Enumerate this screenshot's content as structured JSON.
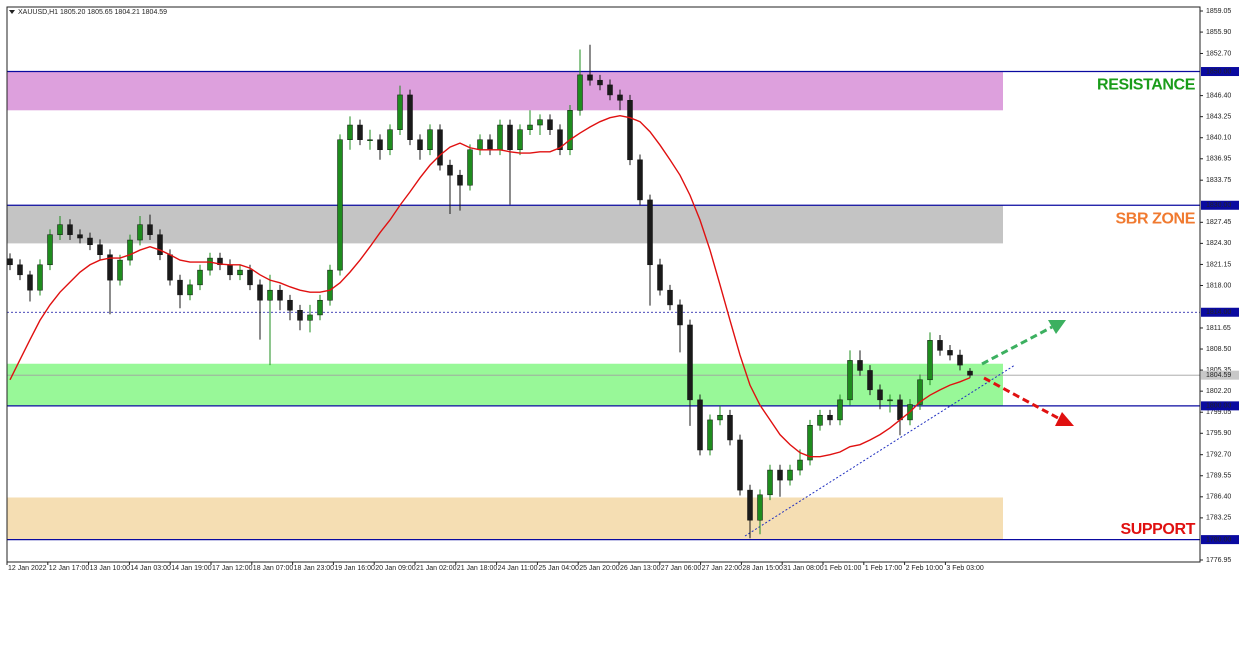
{
  "header": {
    "symbol": "XAUUSD,H1",
    "quote": "1805.20 1805.65 1804.21 1804.59"
  },
  "chart_data": {
    "type": "candlestick",
    "up_color": "#1e8c1e",
    "down_color": "#1a1a1a",
    "ylim": [
      1776.95,
      1859.65
    ],
    "yticks": [
      {
        "value": 1859.05,
        "label": "1859.05"
      },
      {
        "value": 1855.9,
        "label": "1855.90"
      },
      {
        "value": 1852.7,
        "label": "1852.70"
      },
      {
        "value": 1846.4,
        "label": "1846.40"
      },
      {
        "value": 1843.25,
        "label": "1843.25"
      },
      {
        "value": 1840.1,
        "label": "1840.10"
      },
      {
        "value": 1836.95,
        "label": "1836.95"
      },
      {
        "value": 1833.75,
        "label": "1833.75"
      },
      {
        "value": 1827.45,
        "label": "1827.45"
      },
      {
        "value": 1824.3,
        "label": "1824.30"
      },
      {
        "value": 1821.15,
        "label": "1821.15"
      },
      {
        "value": 1818.0,
        "label": "1818.00"
      },
      {
        "value": 1811.65,
        "label": "1811.65"
      },
      {
        "value": 1808.5,
        "label": "1808.50"
      },
      {
        "value": 1805.35,
        "label": "1805.35"
      },
      {
        "value": 1802.2,
        "label": "1802.20"
      },
      {
        "value": 1799.05,
        "label": "1799.05"
      },
      {
        "value": 1795.9,
        "label": "1795.90"
      },
      {
        "value": 1792.7,
        "label": "1792.70"
      },
      {
        "value": 1789.55,
        "label": "1789.55"
      },
      {
        "value": 1786.4,
        "label": "1786.40"
      },
      {
        "value": 1783.25,
        "label": "1783.25"
      },
      {
        "value": 1776.95,
        "label": "1776.95"
      }
    ],
    "xlabels": [
      "12 Jan 2022",
      "12 Jan 17:00",
      "13 Jan 10:00",
      "14 Jan 03:00",
      "14 Jan 19:00",
      "17 Jan 12:00",
      "18 Jan 07:00",
      "18 Jan 23:00",
      "19 Jan 16:00",
      "20 Jan 09:00",
      "21 Jan 02:00",
      "21 Jan 18:00",
      "24 Jan 11:00",
      "25 Jan 04:00",
      "25 Jan 20:00",
      "26 Jan 13:00",
      "27 Jan 06:00",
      "27 Jan 22:00",
      "28 Jan 15:00",
      "31 Jan 08:00",
      "1 Feb 01:00",
      "1 Feb 17:00",
      "2 Feb 10:00",
      "3 Feb 03:00"
    ],
    "zones": [
      {
        "name": "RESISTANCE",
        "from": 1844.2,
        "to": 1850,
        "color": "#dda0dd",
        "text_color": "#1a9c1a"
      },
      {
        "name": "SBR ZONE",
        "from": 1824.3,
        "to": 1830,
        "color": "#c4c4c4",
        "text_color": "#f07a30"
      },
      {
        "from": 1800,
        "to": 1806.3,
        "color": "#98f898"
      },
      {
        "name": "SUPPORT",
        "from": 1780,
        "to": 1786.3,
        "color": "#f5deb3",
        "text_color": "#e01010"
      }
    ],
    "levels": [
      {
        "value": 1850,
        "label": "1850.00"
      },
      {
        "value": 1830,
        "label": "1830.00"
      },
      {
        "value": 1814,
        "label": "1814.00",
        "dashed": true
      },
      {
        "value": 1800,
        "label": "1800.00"
      },
      {
        "value": 1780,
        "label": "1780.00"
      }
    ],
    "level_color": "#0a0aa0",
    "price": {
      "value": 1804.59,
      "label": "1804.59"
    },
    "ma": {
      "color": "#e01010",
      "values": [
        1803.9,
        1806.9,
        1809.9,
        1812.8,
        1815.1,
        1817.0,
        1818.5,
        1820.0,
        1821.1,
        1821.8,
        1822.1,
        1822.1,
        1822.6,
        1823.3,
        1823.8,
        1823.3,
        1822.6,
        1821.8,
        1821.5,
        1821.5,
        1821.5,
        1821.2,
        1821.1,
        1821.1,
        1820.6,
        1819.6,
        1818.8,
        1818.4,
        1817.8,
        1817.3,
        1817.0,
        1817.0,
        1817.3,
        1818.4,
        1820.0,
        1821.8,
        1823.8,
        1825.9,
        1827.8,
        1830.0,
        1832.0,
        1834.1,
        1836.0,
        1837.5,
        1838.7,
        1839.3,
        1838.6,
        1838.3,
        1838.3,
        1838.3,
        1838.0,
        1837.8,
        1837.8,
        1838.0,
        1838.0,
        1838.6,
        1839.8,
        1840.8,
        1841.7,
        1842.5,
        1843.1,
        1843.4,
        1843.1,
        1842.5,
        1841.0,
        1839.0,
        1836.8,
        1834.5,
        1831.5,
        1827.8,
        1823.3,
        1818.1,
        1812.8,
        1807.6,
        1803.1,
        1800.1,
        1797.9,
        1795.7,
        1794.2,
        1793.0,
        1792.4,
        1792.4,
        1792.7,
        1793.1,
        1793.9,
        1794.2,
        1794.9,
        1795.7,
        1796.7,
        1797.9,
        1799.1,
        1800.6,
        1801.6,
        1802.4,
        1803.1,
        1803.6,
        1804.2
      ]
    },
    "ohlc": [
      [
        1822.0,
        1822.8,
        1820.3,
        1821.1
      ],
      [
        1821.1,
        1821.9,
        1818.8,
        1819.6
      ],
      [
        1819.6,
        1820.2,
        1815.6,
        1817.3
      ],
      [
        1817.3,
        1821.9,
        1816.5,
        1821.1
      ],
      [
        1821.1,
        1826.4,
        1820.3,
        1825.6
      ],
      [
        1825.6,
        1828.4,
        1824.8,
        1827.1
      ],
      [
        1827.1,
        1827.9,
        1824.8,
        1825.6
      ],
      [
        1825.6,
        1826.4,
        1824.3,
        1825.1
      ],
      [
        1825.1,
        1825.9,
        1823.3,
        1824.1
      ],
      [
        1824.1,
        1824.9,
        1821.8,
        1822.6
      ],
      [
        1822.6,
        1823.4,
        1813.7,
        1818.8
      ],
      [
        1818.8,
        1822.6,
        1818.0,
        1821.8
      ],
      [
        1821.8,
        1825.6,
        1821.0,
        1824.8
      ],
      [
        1824.8,
        1828.4,
        1824.0,
        1827.1
      ],
      [
        1827.1,
        1828.6,
        1824.8,
        1825.6
      ],
      [
        1825.6,
        1826.4,
        1821.8,
        1822.6
      ],
      [
        1822.6,
        1823.4,
        1818.0,
        1818.8
      ],
      [
        1818.8,
        1819.6,
        1814.6,
        1816.6
      ],
      [
        1816.6,
        1818.9,
        1815.8,
        1818.1
      ],
      [
        1818.1,
        1821.1,
        1817.3,
        1820.3
      ],
      [
        1820.3,
        1822.9,
        1819.5,
        1822.1
      ],
      [
        1822.1,
        1822.9,
        1820.3,
        1821.1
      ],
      [
        1821.1,
        1821.9,
        1818.8,
        1819.6
      ],
      [
        1819.6,
        1821.1,
        1818.8,
        1820.3
      ],
      [
        1820.3,
        1821.1,
        1817.3,
        1818.1
      ],
      [
        1818.1,
        1818.9,
        1809.9,
        1815.8
      ],
      [
        1815.8,
        1819.6,
        1806.1,
        1817.3
      ],
      [
        1817.3,
        1818.1,
        1814.3,
        1815.8
      ],
      [
        1815.8,
        1816.6,
        1812.8,
        1814.3
      ],
      [
        1814.3,
        1815.1,
        1811.3,
        1812.8
      ],
      [
        1812.8,
        1815.1,
        1811.0,
        1813.6
      ],
      [
        1813.6,
        1816.6,
        1812.8,
        1815.8
      ],
      [
        1815.8,
        1821.1,
        1815.0,
        1820.3
      ],
      [
        1820.3,
        1840.6,
        1819.5,
        1839.8
      ],
      [
        1839.8,
        1843.3,
        1838.3,
        1842.0
      ],
      [
        1842.0,
        1842.8,
        1839.0,
        1839.8
      ],
      [
        1839.8,
        1841.3,
        1838.3,
        1839.8
      ],
      [
        1839.8,
        1840.6,
        1836.8,
        1838.3
      ],
      [
        1838.3,
        1842.1,
        1837.5,
        1841.3
      ],
      [
        1841.3,
        1847.9,
        1840.5,
        1846.5
      ],
      [
        1846.5,
        1847.3,
        1839.0,
        1839.8
      ],
      [
        1839.8,
        1840.6,
        1836.8,
        1838.3
      ],
      [
        1838.3,
        1842.1,
        1837.5,
        1841.3
      ],
      [
        1841.3,
        1842.1,
        1835.2,
        1836.0
      ],
      [
        1836.0,
        1836.8,
        1828.7,
        1834.5
      ],
      [
        1834.5,
        1835.3,
        1829.2,
        1833.0
      ],
      [
        1833.0,
        1839.1,
        1832.2,
        1838.3
      ],
      [
        1838.3,
        1840.6,
        1837.5,
        1839.8
      ],
      [
        1839.8,
        1840.6,
        1837.5,
        1838.3
      ],
      [
        1838.3,
        1842.8,
        1837.5,
        1842.0
      ],
      [
        1842.0,
        1842.8,
        1830.1,
        1838.3
      ],
      [
        1838.3,
        1842.1,
        1837.5,
        1841.3
      ],
      [
        1841.3,
        1844.2,
        1840.5,
        1842.0
      ],
      [
        1842.0,
        1843.6,
        1840.5,
        1842.8
      ],
      [
        1842.8,
        1843.6,
        1840.5,
        1841.3
      ],
      [
        1841.3,
        1842.1,
        1837.5,
        1838.3
      ],
      [
        1838.3,
        1845.0,
        1837.5,
        1844.2
      ],
      [
        1844.2,
        1853.3,
        1843.4,
        1849.5
      ],
      [
        1849.5,
        1854.0,
        1847.9,
        1848.7
      ],
      [
        1848.7,
        1849.5,
        1847.2,
        1848.0
      ],
      [
        1848.0,
        1848.8,
        1845.7,
        1846.5
      ],
      [
        1846.5,
        1847.3,
        1844.2,
        1845.7
      ],
      [
        1845.7,
        1846.5,
        1836.0,
        1836.8
      ],
      [
        1836.8,
        1837.6,
        1830.0,
        1830.8
      ],
      [
        1830.8,
        1831.6,
        1815.0,
        1821.1
      ],
      [
        1821.1,
        1822.0,
        1816.5,
        1817.3
      ],
      [
        1817.3,
        1818.1,
        1814.3,
        1815.1
      ],
      [
        1815.1,
        1815.9,
        1808.0,
        1812.1
      ],
      [
        1812.1,
        1812.9,
        1797.0,
        1800.9
      ],
      [
        1800.9,
        1801.7,
        1792.6,
        1793.4
      ],
      [
        1793.4,
        1798.7,
        1792.6,
        1797.9
      ],
      [
        1797.9,
        1800.0,
        1797.1,
        1798.6
      ],
      [
        1798.6,
        1799.4,
        1794.1,
        1794.9
      ],
      [
        1794.9,
        1795.7,
        1786.6,
        1787.4
      ],
      [
        1787.4,
        1788.2,
        1780.2,
        1782.9
      ],
      [
        1782.9,
        1787.5,
        1780.8,
        1786.7
      ],
      [
        1786.7,
        1791.2,
        1785.9,
        1790.4
      ],
      [
        1790.4,
        1791.2,
        1786.4,
        1788.9
      ],
      [
        1788.9,
        1791.2,
        1788.1,
        1790.4
      ],
      [
        1790.4,
        1793.5,
        1789.6,
        1791.9
      ],
      [
        1791.9,
        1797.9,
        1791.1,
        1797.1
      ],
      [
        1797.1,
        1799.4,
        1796.3,
        1798.6
      ],
      [
        1798.6,
        1799.4,
        1797.1,
        1797.9
      ],
      [
        1797.9,
        1801.7,
        1797.1,
        1800.9
      ],
      [
        1800.9,
        1808.3,
        1800.1,
        1806.8
      ],
      [
        1806.8,
        1808.3,
        1804.5,
        1805.3
      ],
      [
        1805.3,
        1806.1,
        1801.6,
        1802.4
      ],
      [
        1802.4,
        1803.2,
        1799.5,
        1800.9
      ],
      [
        1800.9,
        1801.7,
        1799.0,
        1800.9
      ],
      [
        1800.9,
        1801.7,
        1795.6,
        1797.9
      ],
      [
        1797.9,
        1801.0,
        1797.1,
        1800.2
      ],
      [
        1800.2,
        1804.7,
        1799.4,
        1803.9
      ],
      [
        1803.9,
        1811.0,
        1803.1,
        1809.8
      ],
      [
        1809.8,
        1810.6,
        1807.5,
        1808.3
      ],
      [
        1808.3,
        1809.1,
        1806.8,
        1807.6
      ],
      [
        1807.6,
        1808.4,
        1805.3,
        1806.1
      ],
      [
        1805.2,
        1805.65,
        1804.21,
        1804.59
      ]
    ]
  }
}
